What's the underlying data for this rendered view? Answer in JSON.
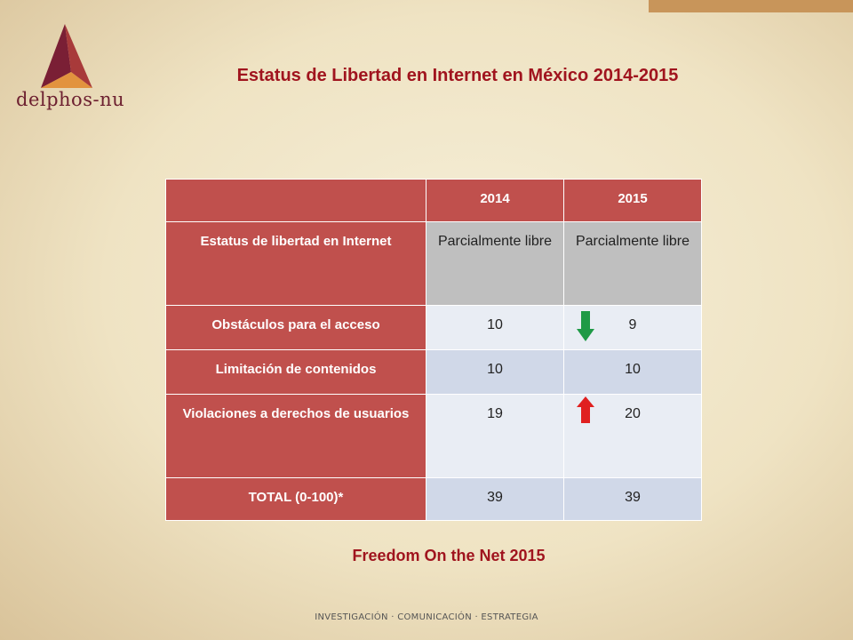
{
  "logo": {
    "text": "delphos-nu"
  },
  "header": {
    "title": "Estatus de Libertad en Internet  en México 2014-2015"
  },
  "table": {
    "columns": [
      "2014",
      "2015"
    ],
    "rows": [
      [
        "Estatus  de libertad en Internet",
        "Parcialmente libre",
        "Parcialmente libre"
      ],
      [
        "Obstáculos  para el acceso",
        10,
        9
      ],
      [
        "Limitación  de contenidos",
        10,
        10
      ],
      [
        "Violaciones  a derechos de usuarios",
        19,
        20
      ],
      [
        "TOTAL  (0-100)*",
        39,
        39
      ]
    ]
  },
  "source": "Freedom On the Net 2015",
  "footer": "INVESTIGACIÓN · COMUNICACIÓN · ESTRATEGIA"
}
